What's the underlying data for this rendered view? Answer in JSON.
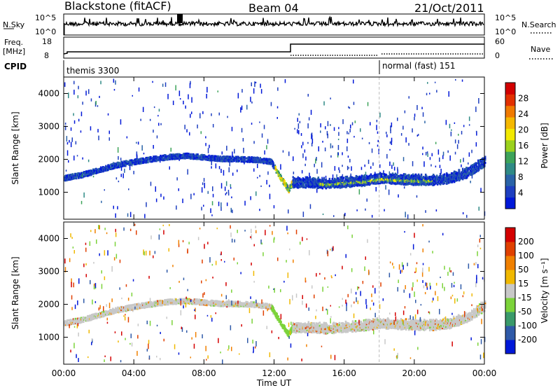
{
  "header": {
    "station": "Blackstone (fitACF)",
    "beam": "Beam 04",
    "date": "21/Oct/2011"
  },
  "strips": {
    "nsky_label": "N.Sky",
    "nsearch_label": "N.Search",
    "freq_label": "Freq.",
    "freq_unit": "[MHz]",
    "nave_label": "Nave",
    "cpid_label": "CPID",
    "left_ticks_top": [
      "10^5",
      "10^0"
    ],
    "right_ticks_top": [
      "10^5",
      "10^0"
    ],
    "freq_ticks": [
      "18",
      "8"
    ],
    "nave_ticks": [
      "60",
      "0"
    ],
    "cpid_segments": [
      {
        "label": "themis 3300",
        "start_hour": 0
      },
      {
        "label": "normal (fast) 151",
        "start_hour": 18
      }
    ]
  },
  "chart_data": [
    {
      "type": "heatmap",
      "name": "Power",
      "xlabel": "",
      "ylabel": "Slant Range [km]",
      "xlim": [
        0,
        24
      ],
      "ylim": [
        180,
        4500
      ],
      "yticks": [
        "1000",
        "2000",
        "3000",
        "4000"
      ],
      "colorbar": {
        "label": "Power [dB]",
        "ticks": [
          "28",
          "24",
          "20",
          "16",
          "12",
          "8",
          "4"
        ],
        "colors": [
          "#0018d8",
          "#1e3fc0",
          "#2a63a8",
          "#2f8a86",
          "#3da35a",
          "#9bd11d",
          "#f2e900",
          "#f5b800",
          "#f07a00",
          "#e23000",
          "#d20000"
        ]
      },
      "band_profile_km": [
        [
          0,
          1400
        ],
        [
          1,
          1500
        ],
        [
          2,
          1650
        ],
        [
          3,
          1800
        ],
        [
          4,
          1900
        ],
        [
          5,
          1980
        ],
        [
          6,
          2050
        ],
        [
          7,
          2080
        ],
        [
          8,
          2030
        ],
        [
          9,
          1990
        ],
        [
          10,
          1980
        ],
        [
          11,
          1960
        ],
        [
          11.8,
          1900
        ],
        [
          12.3,
          1450
        ],
        [
          12.8,
          1050
        ],
        [
          13,
          1250
        ],
        [
          14,
          1250
        ],
        [
          15,
          1220
        ],
        [
          16,
          1260
        ],
        [
          17,
          1300
        ],
        [
          18,
          1380
        ],
        [
          19,
          1350
        ],
        [
          20,
          1330
        ],
        [
          21,
          1320
        ],
        [
          22,
          1380
        ],
        [
          23,
          1550
        ],
        [
          24,
          1900
        ]
      ]
    },
    {
      "type": "heatmap",
      "name": "Velocity",
      "xlabel": "Time UT",
      "ylabel": "Slant Range [km]",
      "xlim": [
        0,
        24
      ],
      "ylim": [
        180,
        4500
      ],
      "xticks": [
        "00:00",
        "04:00",
        "08:00",
        "12:00",
        "16:00",
        "20:00",
        "00:00"
      ],
      "yticks": [
        "1000",
        "2000",
        "3000",
        "4000"
      ],
      "colorbar": {
        "label": "Velocity [m s⁻¹]",
        "ticks": [
          "200",
          "100",
          "50",
          "15",
          "-15",
          "-50",
          "-100",
          "-200"
        ],
        "colors": [
          "#0018d8",
          "#2f5aa8",
          "#3a9a6a",
          "#7cd33a",
          "#c8c8c8",
          "#f0b800",
          "#f08000",
          "#e04000",
          "#d40000"
        ]
      }
    }
  ]
}
